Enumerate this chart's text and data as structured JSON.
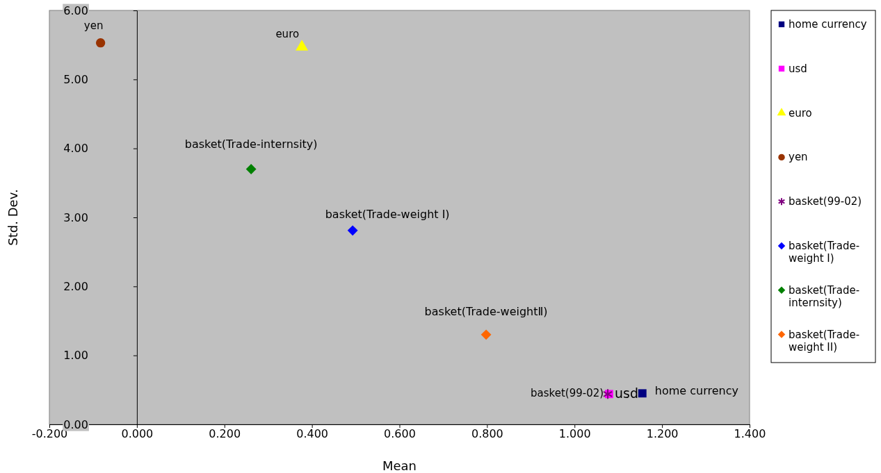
{
  "chart_data": {
    "type": "scatter",
    "xlabel": "Mean",
    "ylabel": "Std. Dev.",
    "xlim": [
      -0.2,
      1.4
    ],
    "xticks": [
      {
        "value": -0.2,
        "label": "-0.200"
      },
      {
        "value": 0,
        "label": "0.000"
      },
      {
        "value": 0.2,
        "label": "0.200"
      },
      {
        "value": 0.4,
        "label": "0.400"
      },
      {
        "value": 0.6,
        "label": "0.600"
      },
      {
        "value": 0.8,
        "label": "0.800"
      },
      {
        "value": 1,
        "label": "1.000"
      },
      {
        "value": 1.2,
        "label": "1.200"
      },
      {
        "value": 1.4,
        "label": "1.400"
      }
    ],
    "ylim": [
      0,
      6
    ],
    "yticks": [
      {
        "value": 0,
        "label": "0.00"
      },
      {
        "value": 1,
        "label": "1.00"
      },
      {
        "value": 2,
        "label": "2.00"
      },
      {
        "value": 3,
        "label": "3.00"
      },
      {
        "value": 4,
        "label": "4.00"
      },
      {
        "value": 5,
        "label": "5.00"
      },
      {
        "value": 6,
        "label": "6.00"
      }
    ],
    "grid": false,
    "legend": "right",
    "series": [
      {
        "name": "home currency",
        "color": "#000080",
        "marker": "square",
        "x": [
          1.155
        ],
        "values": [
          0.45
        ]
      },
      {
        "name": "usd",
        "color": "#ff00ff",
        "marker": "square",
        "x": [
          1.079
        ],
        "values": [
          0.44
        ]
      },
      {
        "name": "euro",
        "color": "#ffff00",
        "marker": "triangle",
        "x": [
          0.377
        ],
        "values": [
          5.47
        ]
      },
      {
        "name": "yen",
        "color": "#993300",
        "marker": "circle",
        "x": [
          -0.083
        ],
        "values": [
          5.53
        ]
      },
      {
        "name": "basket(99-02)",
        "color": "#800080",
        "marker": "cross",
        "x": [
          1.076
        ],
        "values": [
          0.44
        ]
      },
      {
        "name": "basket(Trade-weight I)",
        "color": "#0000ff",
        "marker": "diamond",
        "x": [
          0.493
        ],
        "values": [
          2.81
        ]
      },
      {
        "name": "basket(Trade-internsity)",
        "color": "#008000",
        "marker": "diamond",
        "x": [
          0.261
        ],
        "values": [
          3.7
        ]
      },
      {
        "name": "basket(Trade-weight II)",
        "color": "#ff6600",
        "marker": "diamond",
        "x": [
          0.798
        ],
        "values": [
          1.3
        ]
      }
    ],
    "annotations": [
      {
        "text": "home currency",
        "x": 1.155,
        "y": 0.45
      },
      {
        "text": "usd",
        "x": 1.079,
        "y": 0.44
      },
      {
        "text": "euro",
        "x": 0.377,
        "y": 5.47
      },
      {
        "text": "yen",
        "x": -0.083,
        "y": 5.53
      },
      {
        "text": "basket(99-02)",
        "x": 1.076,
        "y": 0.44
      },
      {
        "text": "basket(Trade-weight Ⅰ)",
        "x": 0.493,
        "y": 2.81
      },
      {
        "text": "basket(Trade-internsity)",
        "x": 0.261,
        "y": 3.7
      },
      {
        "text": "basket(Trade-weightⅡ)",
        "x": 0.798,
        "y": 1.3
      }
    ]
  }
}
